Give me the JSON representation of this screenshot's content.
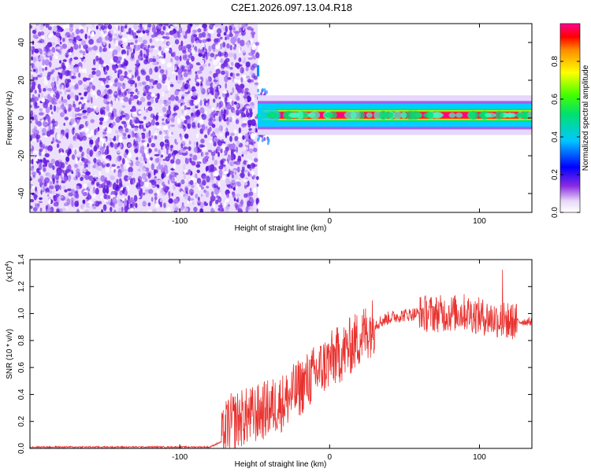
{
  "title": "C2E1.2026.097.13.04.R18",
  "colors": {
    "snr_line": "#e8322f",
    "spectrogram_noise": "#7a2ee0",
    "axis": "#000000"
  },
  "chart_data": [
    {
      "type": "heatmap",
      "xlabel": "Height of straight line (km)",
      "ylabel": "Frequency (Hz)",
      "xlim": [
        -200,
        135
      ],
      "ylim": [
        -50,
        50
      ],
      "x_ticks": [
        -100,
        0,
        100
      ],
      "y_ticks": [
        -40,
        -20,
        0,
        20,
        40
      ],
      "noise_region_x": [
        -200,
        -48
      ],
      "signal": {
        "x_start": -48,
        "x_end": 135,
        "frequency_hz": 1.5
      },
      "colorbar": {
        "label": "Normalized spectral amplitude",
        "range": [
          0.0,
          1.0
        ],
        "ticks": [
          0.0,
          0.2,
          0.4,
          0.6,
          0.8
        ],
        "colormap": "rainbow"
      }
    },
    {
      "type": "line",
      "xlabel": "Height of straight line (km)",
      "ylabel": "SNR (10 * v/v)",
      "y_multiplier": "(x10",
      "y_multiplier_exp": "4",
      "y_multiplier_close": ")",
      "xlim": [
        -200,
        135
      ],
      "ylim": [
        0,
        1.4
      ],
      "x_ticks": [
        -100,
        0,
        100
      ],
      "y_ticks": [
        0.0,
        0.2,
        0.4,
        0.6,
        0.8,
        1.0,
        1.2,
        1.4
      ],
      "y_tick_labels": [
        "0.0",
        "0.2",
        "0.4",
        "0.6",
        "0.8",
        "1.0",
        "1.2",
        "1.4"
      ],
      "series": [
        {
          "x": [
            -200,
            -80,
            -72,
            -68,
            -60,
            -50,
            -40,
            -30,
            -20,
            -10,
            0,
            10,
            20,
            30,
            40,
            50,
            60,
            70,
            80,
            90,
            100,
            110,
            115,
            118,
            120,
            125,
            135
          ],
          "y": [
            0.01,
            0.01,
            0.05,
            0.18,
            0.22,
            0.25,
            0.3,
            0.35,
            0.45,
            0.55,
            0.65,
            0.72,
            0.82,
            0.92,
            0.97,
            0.99,
            1.0,
            1.0,
            1.0,
            1.01,
            0.98,
            0.96,
            0.95,
            0.95,
            0.94,
            0.94,
            0.94
          ]
        }
      ]
    }
  ]
}
